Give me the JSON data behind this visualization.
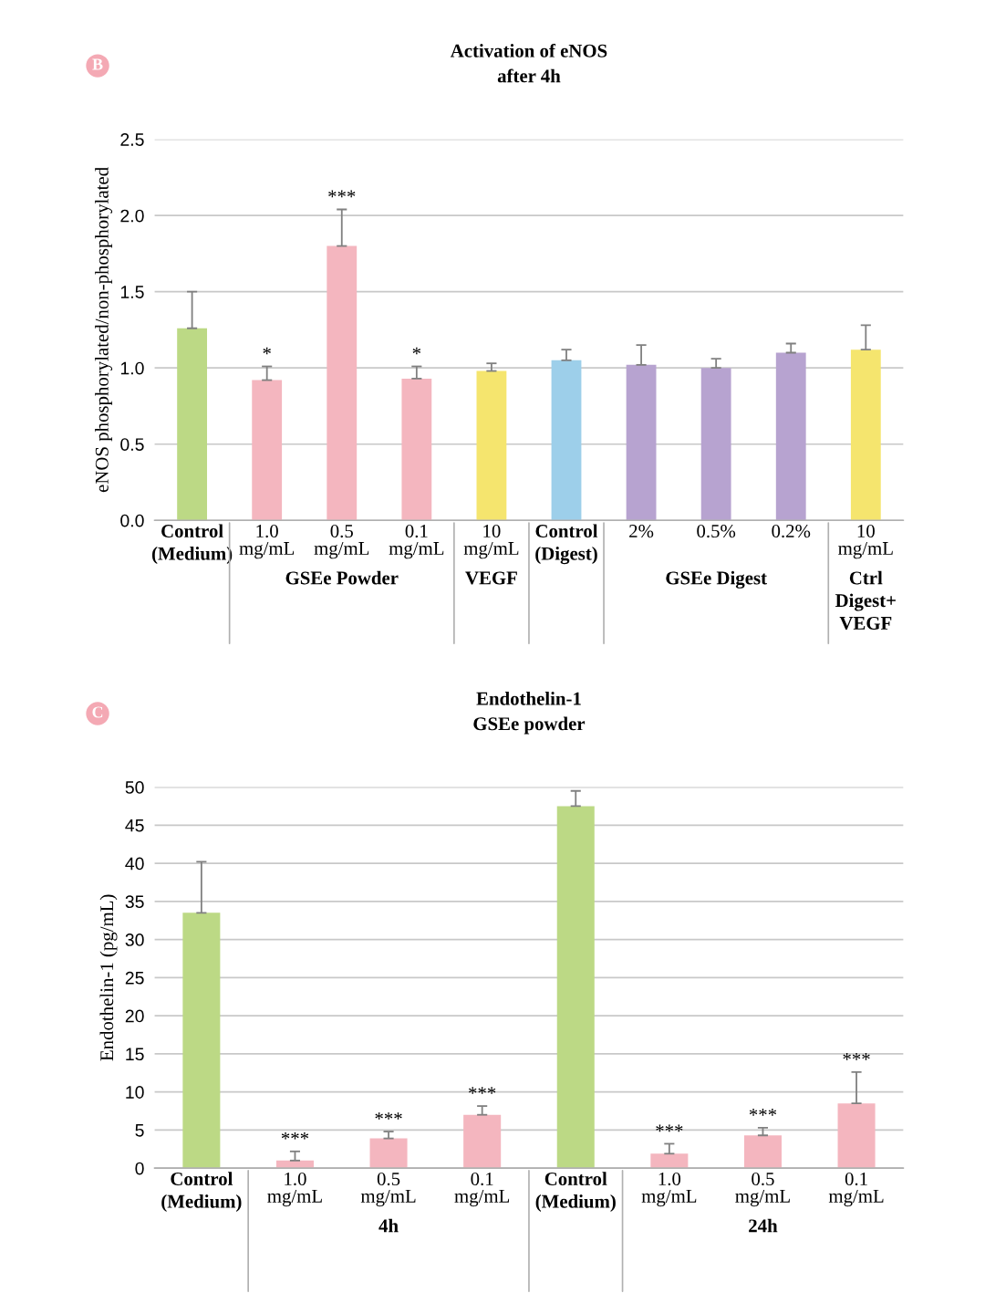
{
  "chart_data": [
    {
      "type": "bar",
      "title": "Activation of eNOS\nafter 4h",
      "ylabel": "eNOS phosphorylated/non-phosphorylated",
      "categories": [
        "\n\nControl\n(Medium)",
        "1.0\nmg/mL",
        "0.5\nmg/mL",
        "0.1\nmg/mL",
        "10\nmg/mL\n\nVEGF",
        "\n\nControl\n(Digest)",
        "2%",
        "0.5%",
        "0.2%",
        "10\nmg/mL\n\nCtrl\nDigest+\nVEGF"
      ],
      "values": [
        1.26,
        0.92,
        1.8,
        0.93,
        0.98,
        1.05,
        1.02,
        1.0,
        1.1,
        1.12
      ],
      "errors": [
        [
          1.26,
          1.5
        ],
        [
          0.92,
          1.01
        ],
        [
          1.8,
          2.04
        ],
        [
          0.93,
          1.01
        ],
        [
          0.98,
          1.03
        ],
        [
          1.05,
          1.12
        ],
        [
          1.02,
          1.15
        ],
        [
          1.0,
          1.06
        ],
        [
          1.1,
          1.16
        ],
        [
          1.12,
          1.28
        ]
      ],
      "value_labels": [
        null,
        "*",
        "***",
        "*",
        null,
        null,
        null,
        null,
        null,
        null
      ],
      "colors": [
        "#bcd985",
        "#f4b6bf",
        "#f4b6bf",
        "#f4b6bf",
        "#f5e56e",
        "#9dcfea",
        "#b7a3d0",
        "#b7a3d0",
        "#b7a3d0",
        "#f5e56e"
      ],
      "ylim": [
        0,
        2.5
      ],
      "yticks": [
        {
          "value": 0,
          "label": "0.0"
        },
        {
          "value": 0.5,
          "label": "0.5"
        },
        {
          "value": 1,
          "label": "1.0"
        },
        {
          "value": 1.5,
          "label": "1.5"
        },
        {
          "value": 2,
          "label": "2.0"
        },
        {
          "value": 2.5,
          "label": "2.5"
        }
      ],
      "grid": "y",
      "annotations": [
        "B",
        "GSEe Powder",
        "GSEe Digest"
      ]
    },
    {
      "type": "bar",
      "title": "Endothelin-1\nGSEe powder",
      "ylabel": "Endothelin-1 (pg/mL)",
      "categories": [
        "\n\nControl\n(Medium)",
        "1.0\nmg/mL",
        "0.5\nmg/mL",
        "0.1\nmg/mL",
        "\n\nControl\n(Medium)",
        "1.0\nmg/mL",
        "0.5\nmg/mL",
        "0.1\nmg/mL"
      ],
      "values": [
        33.5,
        1.0,
        3.9,
        7.0,
        47.5,
        1.9,
        4.3,
        8.5
      ],
      "errors": [
        [
          33.5,
          40.2
        ],
        [
          1.0,
          2.2
        ],
        [
          3.9,
          4.8
        ],
        [
          7.0,
          8.15
        ],
        [
          47.5,
          49.5
        ],
        [
          1.9,
          3.2
        ],
        [
          4.3,
          5.3
        ],
        [
          8.5,
          12.6
        ]
      ],
      "value_labels": [
        null,
        "***",
        "***",
        "***",
        null,
        "***",
        "***",
        "***"
      ],
      "colors": [
        "#bcd985",
        "#f4b6bf",
        "#f4b6bf",
        "#f4b6bf",
        "#bcd985",
        "#f4b6bf",
        "#f4b6bf",
        "#f4b6bf"
      ],
      "ylim": [
        0,
        50
      ],
      "yticks": [
        0,
        5,
        10,
        15,
        20,
        25,
        30,
        35,
        40,
        45,
        50
      ],
      "grid": "y",
      "annotations": [
        "C",
        "4h",
        "24h"
      ]
    }
  ]
}
